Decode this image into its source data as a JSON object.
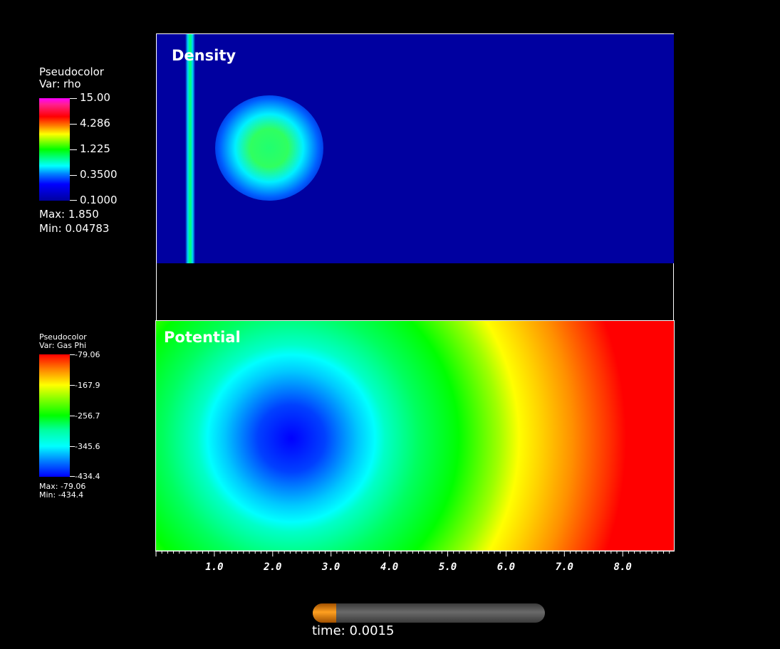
{
  "density_panel": {
    "title": "Density"
  },
  "potential_panel": {
    "title": "Potential"
  },
  "legend_rho": {
    "plot_type": "Pseudocolor",
    "var": "Var: rho",
    "ticks": [
      "15.00",
      "4.286",
      "1.225",
      "0.3500",
      "0.1000"
    ],
    "max": "Max:  1.850",
    "min": "Min:  0.04783"
  },
  "legend_phi": {
    "plot_type": "Pseudocolor",
    "var": "Var: Gas Phi",
    "ticks": [
      "-79.06",
      "-167.9",
      "-256.7",
      "-345.6",
      "-434.4"
    ],
    "max": "Max: -79.06",
    "min": "Min: -434.4"
  },
  "x_axis": {
    "labels": [
      "1.0",
      "2.0",
      "3.0",
      "4.0",
      "5.0",
      "6.0",
      "7.0",
      "8.0"
    ]
  },
  "time": {
    "label": "time: 0.0015",
    "progress": 0.1
  }
}
